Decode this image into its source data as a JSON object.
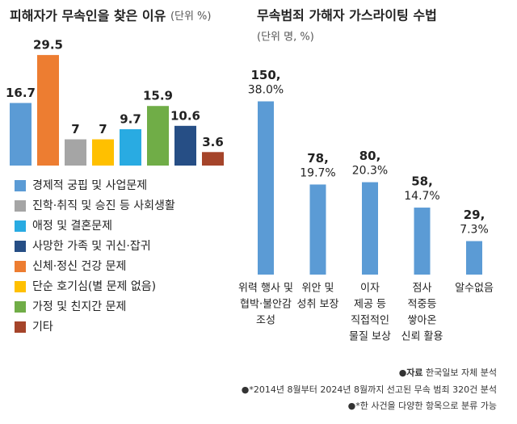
{
  "chart_data": [
    {
      "type": "bar",
      "title": "피해자가 무속인을 찾은 이유",
      "subtitle": "(단위 %)",
      "values": [
        16.7,
        29.5,
        7,
        7,
        9.7,
        15.9,
        10.6,
        3.6
      ],
      "colors": [
        "#5b9bd5",
        "#ed7d31",
        "#a5a5a5",
        "#ffc000",
        "#29abe2",
        "#70ad47",
        "#264e85",
        "#a5442a"
      ],
      "legend": [
        {
          "name": "경제적 궁핍 및 사업문제",
          "color": "#5b9bd5"
        },
        {
          "name": "진학·취직 및 승진 등 사회생활",
          "color": "#a5a5a5"
        },
        {
          "name": "애정 및 결혼문제",
          "color": "#29abe2"
        },
        {
          "name": "사망한 가족 및 귀신·잡귀",
          "color": "#264e85"
        },
        {
          "name": "신체·정신 건강 문제",
          "color": "#ed7d31"
        },
        {
          "name": "단순 호기심(별 문제 없음)",
          "color": "#ffc000"
        },
        {
          "name": "가정 및 친지간 문제",
          "color": "#70ad47"
        },
        {
          "name": "기타",
          "color": "#a5442a"
        }
      ]
    },
    {
      "type": "bar",
      "title": "무속범죄 가해자 가스라이팅 수법",
      "subtitle": "(단위 명, %)",
      "categories": [
        [
          "위력 행사 및",
          "협박·불안감",
          "조성"
        ],
        [
          "위안 및",
          "성취 보장"
        ],
        [
          "이자",
          "제공 등",
          "직접적인",
          "물질 보상"
        ],
        [
          "점사",
          "적중등",
          "쌓아온",
          "신뢰 활용"
        ],
        [
          "알수없음"
        ]
      ],
      "values": [
        150,
        78,
        80,
        58,
        29
      ],
      "value_labels": [
        "150,",
        "78,",
        "80,",
        "58,",
        "29,"
      ],
      "percents": [
        38.0,
        19.7,
        20.3,
        14.7,
        7.3
      ],
      "percent_labels": [
        "38.0%",
        "19.7%",
        "20.3%",
        "14.7%",
        "7.3%"
      ],
      "color": "#5b9bd5"
    }
  ],
  "footer": {
    "source_label": "자료",
    "source": "한국일보 자체 분석",
    "notes": [
      "*2014년 8월부터 2024년 8월까지 선고된 무속 범죄 320건 분석",
      "*한 사건을 다양한 항목으로 분류 가능"
    ]
  }
}
